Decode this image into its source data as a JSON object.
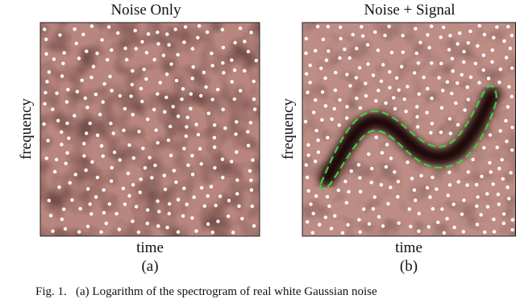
{
  "panels": [
    {
      "title": "Noise Only",
      "x_label": "time",
      "y_label": "frequency",
      "sublabel": "(a)"
    },
    {
      "title": "Noise + Signal",
      "x_label": "time",
      "y_label": "frequency",
      "sublabel": "(b)"
    }
  ],
  "caption": "Fig. 1.   (a) Logarithm of the spectrogram of real white Gaussian noise"
}
